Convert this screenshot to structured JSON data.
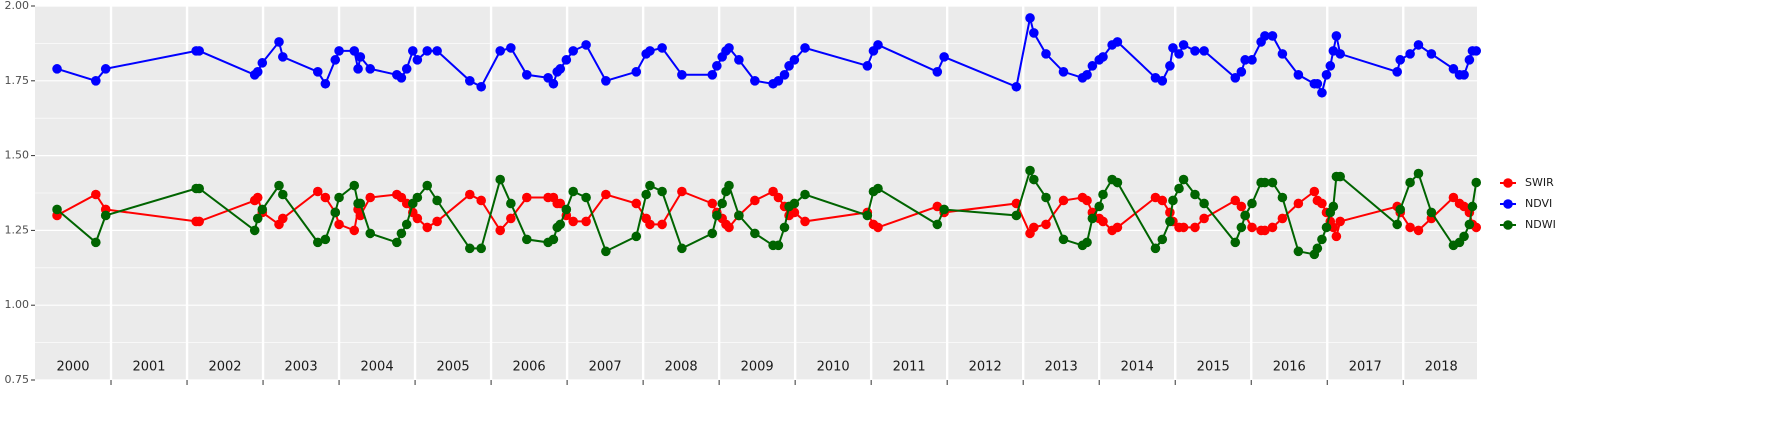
{
  "chart_data": {
    "type": "line",
    "x": [
      2000.29,
      2000.8,
      2000.93,
      2002.12,
      2002.16,
      2002.89,
      2002.93,
      2002.99,
      2003.21,
      2003.26,
      2003.72,
      2003.82,
      2003.95,
      2004.0,
      2004.2,
      2004.25,
      2004.28,
      2004.41,
      2004.76,
      2004.82,
      2004.89,
      2004.97,
      2005.03,
      2005.16,
      2005.29,
      2005.72,
      2005.87,
      2006.12,
      2006.26,
      2006.47,
      2006.75,
      2006.82,
      2006.87,
      2006.91,
      2006.99,
      2007.08,
      2007.25,
      2007.51,
      2007.91,
      2008.04,
      2008.09,
      2008.25,
      2008.51,
      2008.91,
      2008.97,
      2009.04,
      2009.09,
      2009.13,
      2009.26,
      2009.47,
      2009.71,
      2009.78,
      2009.86,
      2009.92,
      2009.99,
      2010.13,
      2010.95,
      2011.03,
      2011.09,
      2011.87,
      2011.96,
      2012.91,
      2013.09,
      2013.14,
      2013.3,
      2013.53,
      2013.78,
      2013.84,
      2013.91,
      2014.0,
      2014.05,
      2014.17,
      2014.24,
      2014.74,
      2014.83,
      2014.93,
      2014.97,
      2015.05,
      2015.11,
      2015.26,
      2015.38,
      2015.79,
      2015.87,
      2015.92,
      2016.01,
      2016.13,
      2016.18,
      2016.28,
      2016.41,
      2016.62,
      2016.83,
      2016.87,
      2016.93,
      2016.99,
      2017.04,
      2017.08,
      2017.12,
      2017.17,
      2017.92,
      2017.96,
      2018.09,
      2018.2,
      2018.37,
      2018.66,
      2018.74,
      2018.8,
      2018.87,
      2018.91,
      2018.96
    ],
    "series": [
      {
        "name": "SWIR",
        "color": "#ff0000",
        "values": [
          1.3,
          1.37,
          1.32,
          1.28,
          1.28,
          1.35,
          1.36,
          1.31,
          1.27,
          1.29,
          1.38,
          1.36,
          1.31,
          1.27,
          1.25,
          1.32,
          1.3,
          1.36,
          1.37,
          1.36,
          1.34,
          1.31,
          1.29,
          1.26,
          1.28,
          1.37,
          1.35,
          1.25,
          1.29,
          1.36,
          1.36,
          1.36,
          1.34,
          1.34,
          1.3,
          1.28,
          1.28,
          1.37,
          1.34,
          1.29,
          1.27,
          1.27,
          1.38,
          1.34,
          1.31,
          1.29,
          1.27,
          1.26,
          1.3,
          1.35,
          1.38,
          1.36,
          1.33,
          1.3,
          1.31,
          1.28,
          1.31,
          1.27,
          1.26,
          1.33,
          1.31,
          1.34,
          1.24,
          1.26,
          1.27,
          1.35,
          1.36,
          1.35,
          1.31,
          1.29,
          1.28,
          1.25,
          1.26,
          1.36,
          1.35,
          1.31,
          1.28,
          1.26,
          1.26,
          1.26,
          1.29,
          1.35,
          1.33,
          1.3,
          1.26,
          1.25,
          1.25,
          1.26,
          1.29,
          1.34,
          1.38,
          1.35,
          1.34,
          1.31,
          1.28,
          1.26,
          1.23,
          1.28,
          1.33,
          1.31,
          1.26,
          1.25,
          1.29,
          1.36,
          1.34,
          1.33,
          1.31,
          1.27,
          1.26
        ]
      },
      {
        "name": "NDVI",
        "color": "#0000ff",
        "values": [
          1.79,
          1.75,
          1.79,
          1.85,
          1.85,
          1.77,
          1.78,
          1.81,
          1.88,
          1.83,
          1.78,
          1.74,
          1.82,
          1.85,
          1.85,
          1.79,
          1.83,
          1.79,
          1.77,
          1.76,
          1.79,
          1.85,
          1.82,
          1.85,
          1.85,
          1.75,
          1.73,
          1.85,
          1.86,
          1.77,
          1.76,
          1.74,
          1.78,
          1.79,
          1.82,
          1.85,
          1.87,
          1.75,
          1.78,
          1.84,
          1.85,
          1.86,
          1.77,
          1.77,
          1.8,
          1.83,
          1.85,
          1.86,
          1.82,
          1.75,
          1.74,
          1.75,
          1.77,
          1.8,
          1.82,
          1.86,
          1.8,
          1.85,
          1.87,
          1.78,
          1.83,
          1.73,
          1.96,
          1.91,
          1.84,
          1.78,
          1.76,
          1.77,
          1.8,
          1.82,
          1.83,
          1.87,
          1.88,
          1.76,
          1.75,
          1.8,
          1.86,
          1.84,
          1.87,
          1.85,
          1.85,
          1.76,
          1.78,
          1.82,
          1.82,
          1.88,
          1.9,
          1.9,
          1.84,
          1.77,
          1.74,
          1.74,
          1.71,
          1.77,
          1.8,
          1.85,
          1.9,
          1.84,
          1.78,
          1.82,
          1.84,
          1.87,
          1.84,
          1.79,
          1.77,
          1.77,
          1.82,
          1.85,
          1.85
        ]
      },
      {
        "name": "NDWI",
        "color": "#006400",
        "values": [
          1.32,
          1.21,
          1.3,
          1.39,
          1.39,
          1.25,
          1.29,
          1.32,
          1.4,
          1.37,
          1.21,
          1.22,
          1.31,
          1.36,
          1.4,
          1.34,
          1.34,
          1.24,
          1.21,
          1.24,
          1.27,
          1.34,
          1.36,
          1.4,
          1.35,
          1.19,
          1.19,
          1.42,
          1.34,
          1.22,
          1.21,
          1.22,
          1.26,
          1.27,
          1.32,
          1.38,
          1.36,
          1.18,
          1.23,
          1.37,
          1.4,
          1.38,
          1.19,
          1.24,
          1.3,
          1.34,
          1.38,
          1.4,
          1.3,
          1.24,
          1.2,
          1.2,
          1.26,
          1.33,
          1.34,
          1.37,
          1.3,
          1.38,
          1.39,
          1.27,
          1.32,
          1.3,
          1.45,
          1.42,
          1.36,
          1.22,
          1.2,
          1.21,
          1.29,
          1.33,
          1.37,
          1.42,
          1.41,
          1.19,
          1.22,
          1.28,
          1.35,
          1.39,
          1.42,
          1.37,
          1.34,
          1.21,
          1.26,
          1.3,
          1.34,
          1.41,
          1.41,
          1.41,
          1.36,
          1.18,
          1.17,
          1.19,
          1.22,
          1.26,
          1.31,
          1.33,
          1.43,
          1.43,
          1.27,
          1.32,
          1.41,
          1.44,
          1.31,
          1.2,
          1.21,
          1.23,
          1.27,
          1.33,
          1.41
        ]
      }
    ],
    "xlim": [
      2000,
      2018.97
    ],
    "xticks": [
      2001,
      2002,
      2003,
      2004,
      2005,
      2006,
      2007,
      2008,
      2009,
      2010,
      2011,
      2012,
      2013,
      2014,
      2015,
      2016,
      2017,
      2018
    ],
    "ylim": [
      0.75,
      2.0
    ],
    "yticks": [
      {
        "value": 0.75,
        "label": "0.75"
      },
      {
        "value": 1.0,
        "label": "1.00"
      },
      {
        "value": 1.25,
        "label": "1.25"
      },
      {
        "value": 1.5,
        "label": "1.50"
      },
      {
        "value": 1.75,
        "label": "1.75"
      },
      {
        "value": 2.0,
        "label": "2.00"
      }
    ],
    "annotations": [
      {
        "text": "2000",
        "x": 2000.5
      },
      {
        "text": "2001",
        "x": 2001.5
      },
      {
        "text": "2002",
        "x": 2002.5
      },
      {
        "text": "2003",
        "x": 2003.5
      },
      {
        "text": "2004",
        "x": 2004.5
      },
      {
        "text": "2005",
        "x": 2005.5
      },
      {
        "text": "2006",
        "x": 2006.5
      },
      {
        "text": "2007",
        "x": 2007.5
      },
      {
        "text": "2008",
        "x": 2008.5
      },
      {
        "text": "2009",
        "x": 2009.5
      },
      {
        "text": "2010",
        "x": 2010.5
      },
      {
        "text": "2011",
        "x": 2011.5
      },
      {
        "text": "2012",
        "x": 2012.5
      },
      {
        "text": "2013",
        "x": 2013.5
      },
      {
        "text": "2014",
        "x": 2014.5
      },
      {
        "text": "2015",
        "x": 2015.5
      },
      {
        "text": "2016",
        "x": 2016.5
      },
      {
        "text": "2017",
        "x": 2017.5
      },
      {
        "text": "2018",
        "x": 2018.5
      }
    ],
    "grid": true,
    "legend": "right"
  }
}
